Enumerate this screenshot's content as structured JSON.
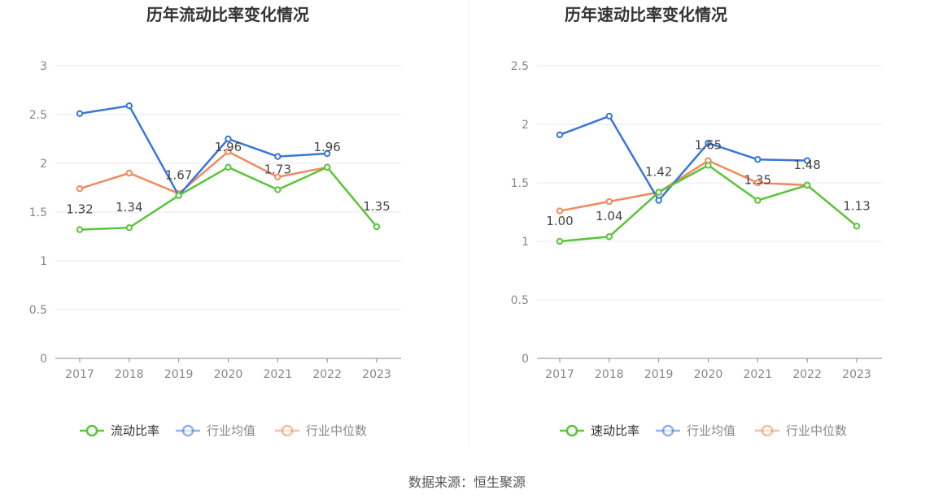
{
  "source_text": "数据来源：恒生聚源",
  "chart_data": [
    {
      "type": "line",
      "title": "历年流动比率变化情况",
      "categories": [
        "2017",
        "2018",
        "2019",
        "2020",
        "2021",
        "2022",
        "2023"
      ],
      "ylim": [
        0,
        3
      ],
      "yticks": [
        "0",
        "0.5",
        "1",
        "1.5",
        "2",
        "2.5",
        "3"
      ],
      "grid": true,
      "legend_position": "bottom-center",
      "series": [
        {
          "name": "流动比率",
          "color": "#5ac43a",
          "values": [
            1.32,
            1.34,
            1.67,
            1.96,
            1.73,
            1.96,
            1.35
          ],
          "labels": [
            "1.32",
            "1.34",
            "1.67",
            "1.96",
            "1.73",
            "1.96",
            "1.35"
          ]
        },
        {
          "name": "行业均值",
          "color": "#3a76d8",
          "values": [
            2.51,
            2.59,
            1.67,
            2.25,
            2.07,
            2.1,
            null
          ]
        },
        {
          "name": "行业中位数",
          "color": "#f2895e",
          "values": [
            1.74,
            1.9,
            1.69,
            2.12,
            1.86,
            1.96,
            null
          ]
        }
      ]
    },
    {
      "type": "line",
      "title": "历年速动比率变化情况",
      "categories": [
        "2017",
        "2018",
        "2019",
        "2020",
        "2021",
        "2022",
        "2023"
      ],
      "ylim": [
        0,
        2.5
      ],
      "yticks": [
        "0",
        "0.5",
        "1",
        "1.5",
        "2",
        "2.5"
      ],
      "grid": true,
      "legend_position": "bottom-center",
      "series": [
        {
          "name": "速动比率",
          "color": "#5ac43a",
          "values": [
            1.0,
            1.04,
            1.42,
            1.65,
            1.35,
            1.48,
            1.13
          ],
          "labels": [
            "1.00",
            "1.04",
            "1.42",
            "1.65",
            "1.35",
            "1.48",
            "1.13"
          ]
        },
        {
          "name": "行业均值",
          "color": "#3a76d8",
          "values": [
            1.91,
            2.07,
            1.35,
            1.84,
            1.7,
            1.69,
            null
          ]
        },
        {
          "name": "行业中位数",
          "color": "#f2895e",
          "values": [
            1.26,
            1.34,
            1.42,
            1.69,
            1.5,
            1.48,
            null
          ]
        }
      ]
    }
  ]
}
